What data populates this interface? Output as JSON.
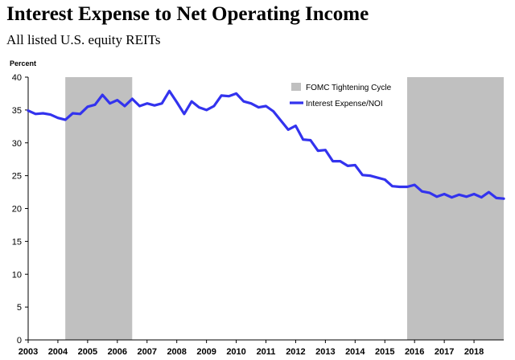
{
  "chart_data": {
    "type": "line",
    "title": "Interest Expense to Net Operating Income",
    "subtitle": "All listed U.S. equity REITs",
    "ylabel": "Percent",
    "ylim": [
      0,
      40
    ],
    "yticks": [
      0,
      5,
      10,
      15,
      20,
      25,
      30,
      35,
      40
    ],
    "xlim": [
      2003,
      2019
    ],
    "xticks": [
      "2003",
      "2004",
      "2005",
      "2006",
      "2007",
      "2008",
      "2009",
      "2010",
      "2011",
      "2012",
      "2013",
      "2014",
      "2015",
      "2016",
      "2017",
      "2018"
    ],
    "grid": false,
    "legend_position": "top-right",
    "colors": {
      "line": "#3333ee",
      "band": "#c0c0c0"
    },
    "bands": {
      "name": "FOMC Tightening Cycle",
      "ranges": [
        [
          2004.25,
          2006.5
        ],
        [
          2015.75,
          2019
        ]
      ]
    },
    "series": [
      {
        "name": "Interest Expense/NOI",
        "x": [
          2003.0,
          2003.25,
          2003.5,
          2003.75,
          2004.0,
          2004.25,
          2004.5,
          2004.75,
          2005.0,
          2005.25,
          2005.5,
          2005.75,
          2006.0,
          2006.25,
          2006.5,
          2006.75,
          2007.0,
          2007.25,
          2007.5,
          2007.75,
          2008.0,
          2008.25,
          2008.5,
          2008.75,
          2009.0,
          2009.25,
          2009.5,
          2009.75,
          2010.0,
          2010.25,
          2010.5,
          2010.75,
          2011.0,
          2011.25,
          2011.5,
          2011.75,
          2012.0,
          2012.25,
          2012.5,
          2012.75,
          2013.0,
          2013.25,
          2013.5,
          2013.75,
          2014.0,
          2014.25,
          2014.5,
          2014.75,
          2015.0,
          2015.25,
          2015.5,
          2015.75,
          2016.0,
          2016.25,
          2016.5,
          2016.75,
          2017.0,
          2017.25,
          2017.5,
          2017.75,
          2018.0,
          2018.25,
          2018.5,
          2018.75,
          2019.0
        ],
        "values": [
          34.9,
          34.4,
          34.5,
          34.3,
          33.8,
          33.5,
          34.5,
          34.4,
          35.5,
          35.8,
          37.3,
          36.0,
          36.5,
          35.6,
          36.7,
          35.6,
          36.0,
          35.7,
          36.0,
          37.9,
          36.2,
          34.4,
          36.3,
          35.4,
          35.0,
          35.6,
          37.2,
          37.1,
          37.5,
          36.3,
          36.0,
          35.4,
          35.6,
          34.8,
          33.4,
          32.0,
          32.6,
          30.5,
          30.4,
          28.8,
          28.9,
          27.2,
          27.2,
          26.5,
          26.6,
          25.1,
          25.0,
          24.7,
          24.4,
          23.4,
          23.3,
          23.3,
          23.6,
          22.6,
          22.4,
          21.8,
          22.2,
          21.7,
          22.1,
          21.8,
          22.2,
          21.7,
          22.5,
          21.6,
          21.5
        ]
      }
    ]
  }
}
